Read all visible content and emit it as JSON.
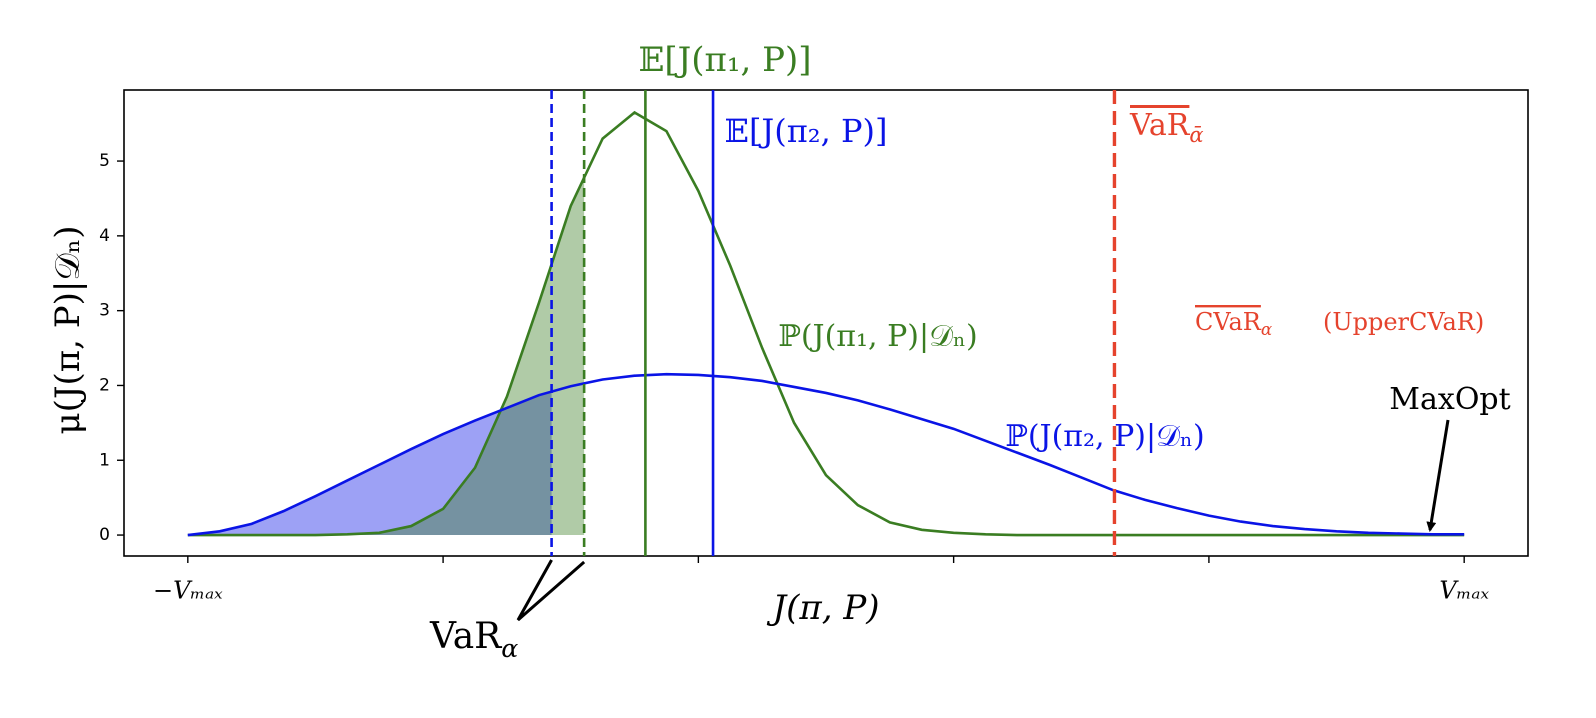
{
  "chart_data": {
    "type": "line",
    "ylabel": "μ(J(π, P)|𝒟ₙ)",
    "xlabel": "J(π, P)",
    "xlim": [
      -1.1,
      1.1
    ],
    "ylim": [
      -0.28,
      5.95
    ],
    "xticks": [
      {
        "value": -1,
        "label": "−Vₘₐₓ"
      },
      {
        "value": -0.6,
        "label": null
      },
      {
        "value": -0.2,
        "label": null
      },
      {
        "value": 0.2,
        "label": null
      },
      {
        "value": 0.6,
        "label": null
      },
      {
        "value": 1,
        "label": "Vₘₐₓ"
      }
    ],
    "yticks": [
      0,
      1,
      2,
      3,
      4,
      5
    ],
    "x": [
      -1,
      -0.95,
      -0.9,
      -0.85,
      -0.8,
      -0.75,
      -0.7,
      -0.65,
      -0.6,
      -0.55,
      -0.5,
      -0.45,
      -0.4,
      -0.35,
      -0.3,
      -0.25,
      -0.2,
      -0.15,
      -0.1,
      -0.05,
      0,
      0.05,
      0.1,
      0.15,
      0.2,
      0.25,
      0.3,
      0.35,
      0.4,
      0.45,
      0.5,
      0.55,
      0.6,
      0.65,
      0.7,
      0.75,
      0.8,
      0.85,
      0.9,
      0.95,
      1
    ],
    "series": [
      {
        "name": "ℙ(J(π₁, P)|𝒟ₙ)",
        "color": "#3a7d22",
        "fill": "rgba(58,125,34,0.4)",
        "values": [
          0,
          0,
          0,
          0,
          0,
          0.01,
          0.03,
          0.12,
          0.35,
          0.9,
          1.85,
          3.1,
          4.4,
          5.3,
          5.65,
          5.4,
          4.6,
          3.6,
          2.5,
          1.5,
          0.8,
          0.4,
          0.17,
          0.07,
          0.03,
          0.01,
          0,
          0,
          0,
          0,
          0,
          0,
          0,
          0,
          0,
          0,
          0,
          0,
          0,
          0,
          0
        ]
      },
      {
        "name": "ℙ(J(π₂, P)|𝒟ₙ)",
        "color": "#0a14e6",
        "fill": "rgba(10,20,230,0.4)",
        "values": [
          0,
          0.05,
          0.15,
          0.32,
          0.52,
          0.73,
          0.94,
          1.15,
          1.35,
          1.53,
          1.7,
          1.87,
          1.99,
          2.08,
          2.13,
          2.15,
          2.14,
          2.11,
          2.06,
          1.98,
          1.9,
          1.8,
          1.68,
          1.55,
          1.42,
          1.26,
          1.1,
          0.94,
          0.77,
          0.6,
          0.47,
          0.36,
          0.26,
          0.18,
          0.12,
          0.08,
          0.05,
          0.03,
          0.02,
          0.01,
          0.01
        ]
      }
    ],
    "vlines": [
      {
        "x": -0.43,
        "color": "#0a14e6",
        "dashed": true,
        "fill_series": 1
      },
      {
        "x": -0.379,
        "color": "#3a7d22",
        "dashed": true,
        "fill_series": 0
      },
      {
        "x": -0.283,
        "color": "#3a7d22",
        "dashed": false
      },
      {
        "x": -0.177,
        "color": "#0a14e6",
        "dashed": false
      },
      {
        "x": 0.452,
        "color": "#e5432d",
        "dashed": true
      }
    ],
    "annotations": [
      {
        "text": "𝔼[J(π₁, P)]",
        "color": "#3a7d22"
      },
      {
        "text": "𝔼[J(π₂, P)]",
        "color": "#0a14e6"
      },
      {
        "text": "VaR",
        "sub": "ᾱ",
        "color": "#e5432d",
        "overline": true
      },
      {
        "text": "CVaR",
        "sub": "α",
        "color": "#e5432d",
        "overline": true
      },
      {
        "text": "(UpperCVaR)",
        "color": "#e5432d"
      },
      {
        "text": "MaxOpt",
        "color": "#000000"
      },
      {
        "text": "VaR",
        "sub": "α",
        "color": "#000000"
      }
    ]
  }
}
